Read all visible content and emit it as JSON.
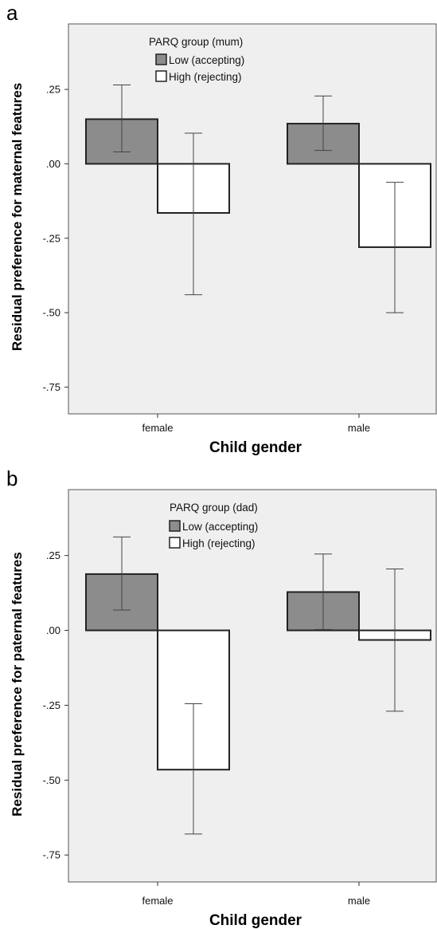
{
  "chart_data": [
    {
      "panel": "a",
      "type": "bar",
      "categories": [
        "female",
        "male"
      ],
      "xlabel": "Child gender",
      "ylabel": "Residual preference for maternal features",
      "ylim": [
        -0.84,
        0.47
      ],
      "yticks": [
        0.25,
        0.0,
        -0.25,
        -0.5,
        -0.75
      ],
      "ytick_labels": [
        ".25",
        ".00",
        "-.25",
        "-.50",
        "-.75"
      ],
      "grid": false,
      "legend": {
        "title": "PARQ group (mum)",
        "placement": "top-left",
        "entries": [
          "Low (accepting)",
          "High (rejecting)"
        ]
      },
      "series": [
        {
          "name": "Low (accepting)",
          "color": "#8c8c8c",
          "values": [
            0.15,
            0.135
          ],
          "err_low": [
            0.04,
            0.045
          ],
          "err_high": [
            0.265,
            0.228
          ]
        },
        {
          "name": "High (rejecting)",
          "color": "#ffffff",
          "values": [
            -0.165,
            -0.28
          ],
          "err_low": [
            -0.44,
            -0.5
          ],
          "err_high": [
            0.103,
            -0.062
          ]
        }
      ]
    },
    {
      "panel": "b",
      "type": "bar",
      "categories": [
        "female",
        "male"
      ],
      "xlabel": "Child gender",
      "ylabel": "Residual preference for paternal features",
      "ylim": [
        -0.84,
        0.47
      ],
      "yticks": [
        0.25,
        0.0,
        -0.25,
        -0.5,
        -0.75
      ],
      "ytick_labels": [
        ".25",
        ".00",
        "-.25",
        "-.50",
        "-.75"
      ],
      "grid": false,
      "legend": {
        "title": "PARQ group (dad)",
        "placement": "top-left",
        "entries": [
          "Low (accepting)",
          "High (rejecting)"
        ]
      },
      "series": [
        {
          "name": "Low (accepting)",
          "color": "#8c8c8c",
          "values": [
            0.188,
            0.128
          ],
          "err_low": [
            0.068,
            0.003
          ],
          "err_high": [
            0.312,
            0.255
          ]
        },
        {
          "name": "High (rejecting)",
          "color": "#ffffff",
          "values": [
            -0.465,
            -0.032
          ],
          "err_low": [
            -0.68,
            -0.27
          ],
          "err_high": [
            -0.245,
            0.205
          ]
        }
      ]
    }
  ]
}
